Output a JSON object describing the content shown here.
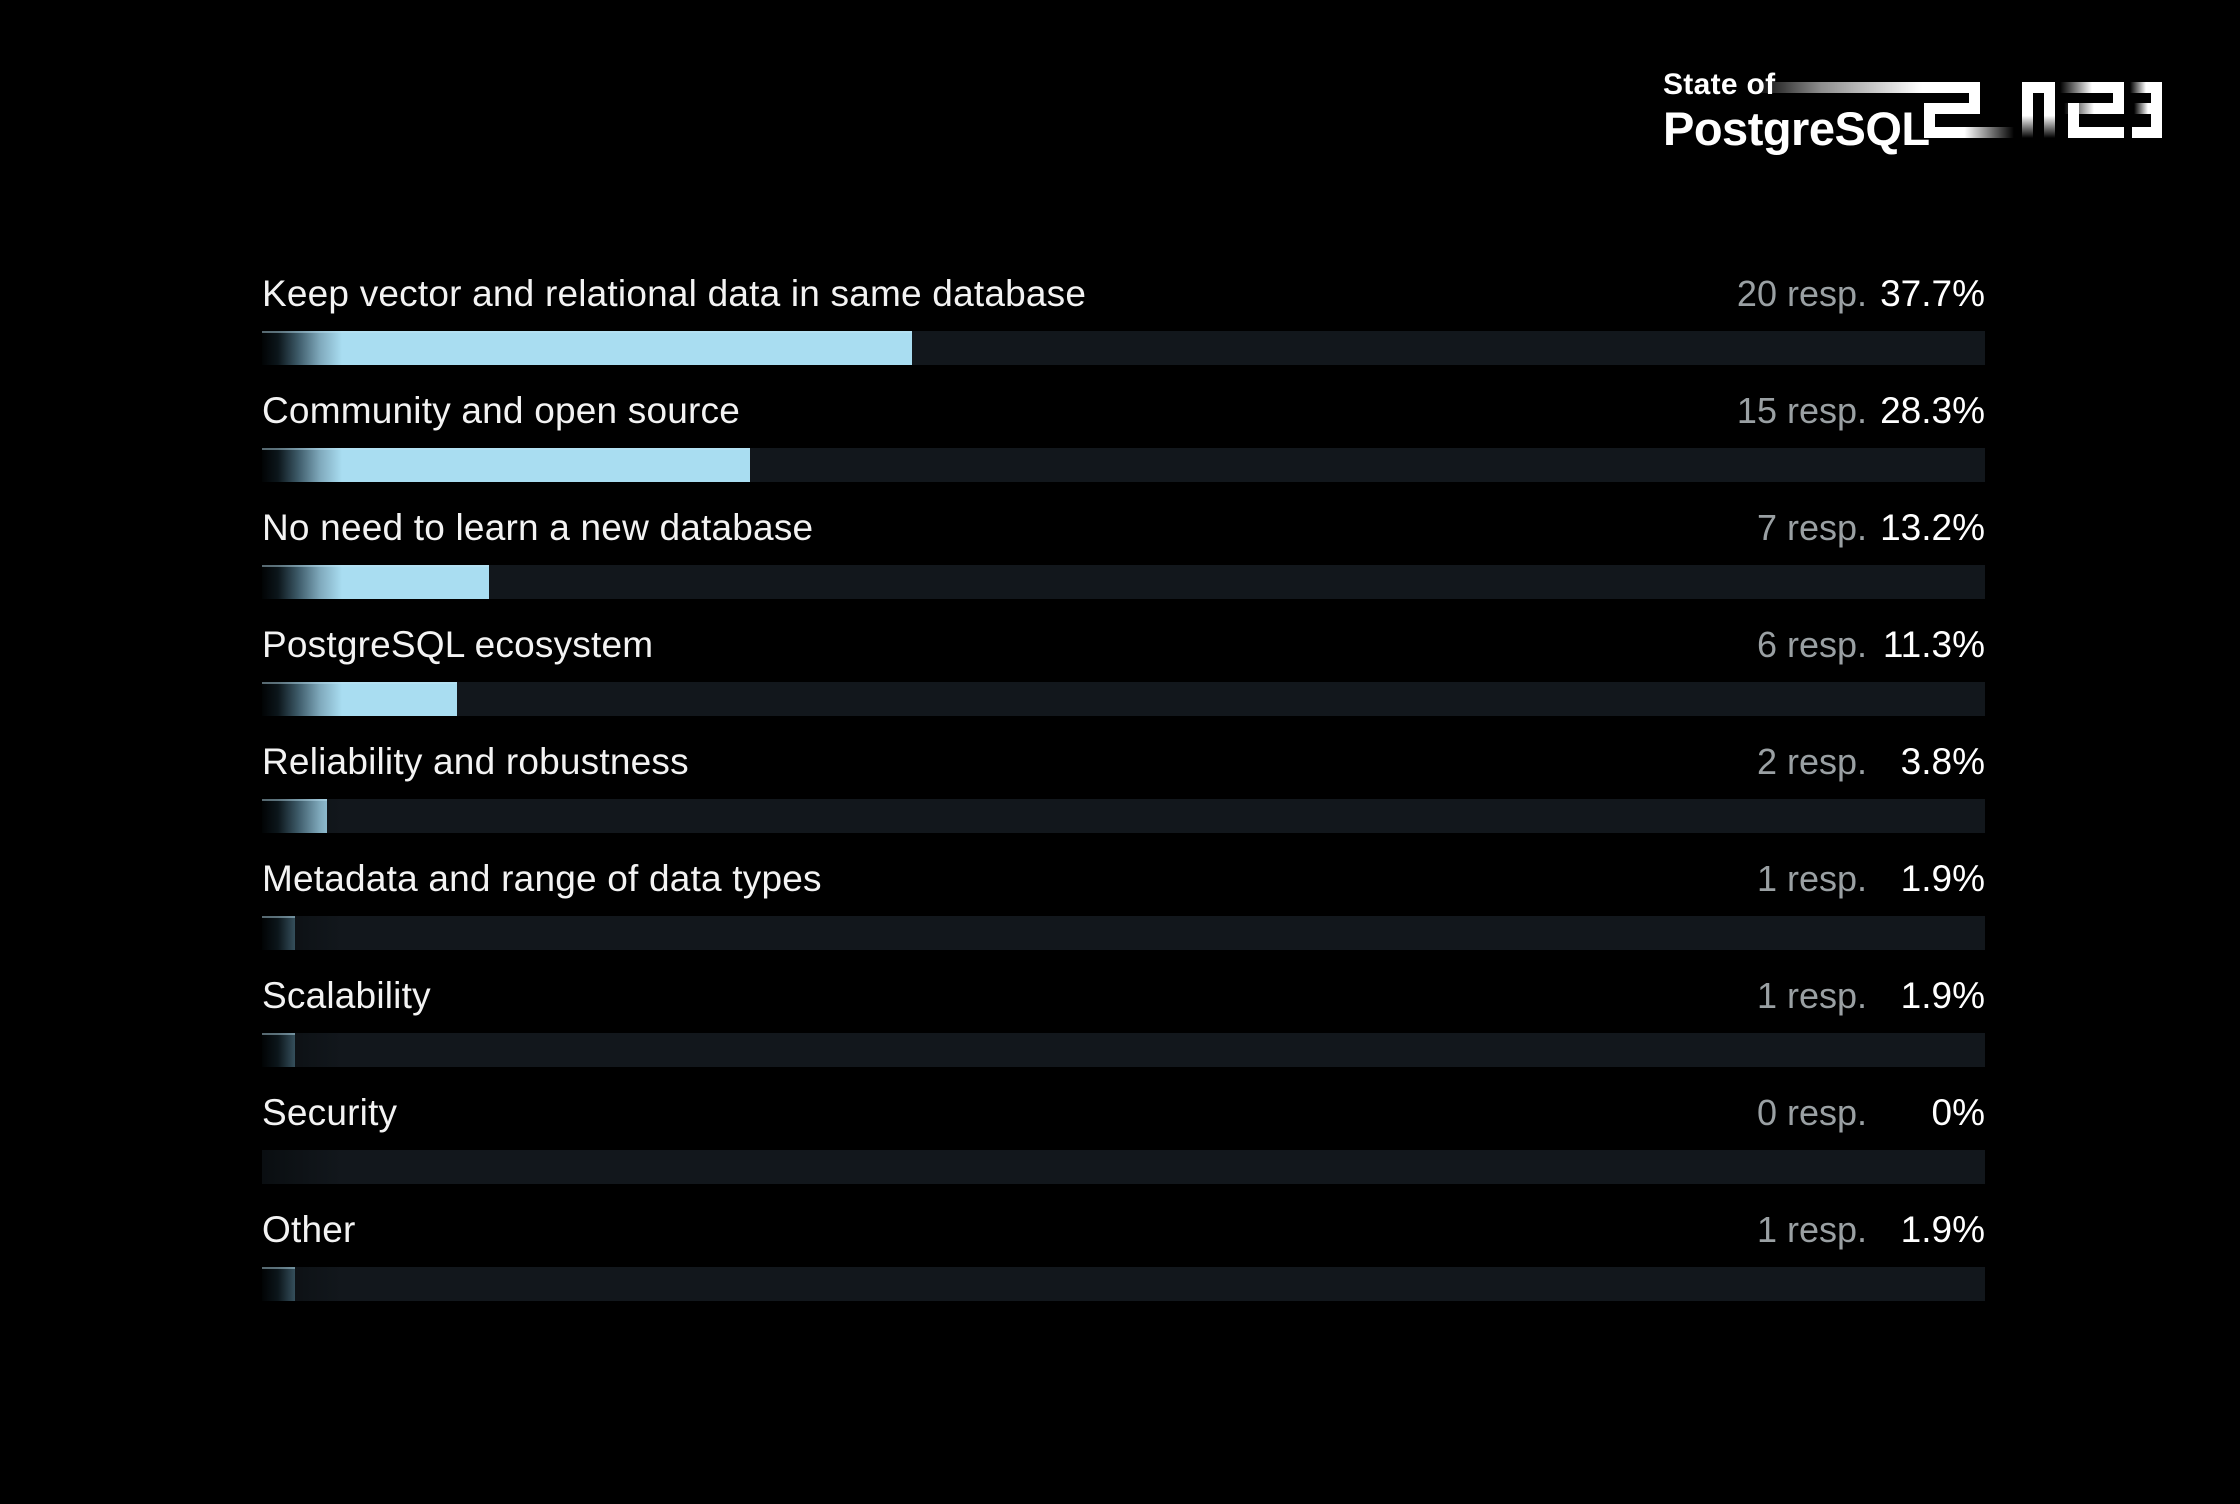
{
  "page": {
    "background": "#000000"
  },
  "logo": {
    "line1": "State of",
    "line2": "PostgreSQL",
    "year": "2023"
  },
  "colors": {
    "background": "#000000",
    "bar_fill": "#a9ddf1",
    "bar_gradient_dark": "#010304",
    "track": "#12171c",
    "label_text": "#f3f3f3",
    "resp_text": "#9aa0a3",
    "pct_text": "#ffffff",
    "logo_text": "#ffffff"
  },
  "chart_data": {
    "type": "bar",
    "orientation": "horizontal",
    "title": "",
    "xlabel": "",
    "ylabel": "",
    "xlim": [
      0,
      100
    ],
    "grid": false,
    "legend": "none",
    "value_labels_position": "right",
    "unit_label": "resp.",
    "categories": [
      "Keep vector and relational data in same database",
      "Community and open source",
      "No need to learn a new database",
      "PostgreSQL ecosystem",
      "Reliability and robustness",
      "Metadata and range of data types",
      "Scalability",
      "Security",
      "Other"
    ],
    "responses": [
      20,
      15,
      7,
      6,
      2,
      1,
      1,
      0,
      1
    ],
    "percentages": [
      37.7,
      28.3,
      13.2,
      11.3,
      3.8,
      1.9,
      1.9,
      0,
      1.9
    ],
    "rows": [
      {
        "label": "Keep vector and relational data in same database",
        "resp": "20 resp.",
        "pct": "37.7%",
        "pct_value": 37.7
      },
      {
        "label": "Community and open source",
        "resp": "15 resp.",
        "pct": "28.3%",
        "pct_value": 28.3
      },
      {
        "label": "No need to learn a new database",
        "resp": "7 resp.",
        "pct": "13.2%",
        "pct_value": 13.2
      },
      {
        "label": "PostgreSQL ecosystem",
        "resp": "6 resp.",
        "pct": "11.3%",
        "pct_value": 11.3
      },
      {
        "label": "Reliability and robustness",
        "resp": "2 resp.",
        "pct": "3.8%",
        "pct_value": 3.8
      },
      {
        "label": "Metadata and range of data types",
        "resp": "1 resp.",
        "pct": "1.9%",
        "pct_value": 1.9
      },
      {
        "label": "Scalability",
        "resp": "1 resp.",
        "pct": "1.9%",
        "pct_value": 1.9
      },
      {
        "label": "Security",
        "resp": "0 resp.",
        "pct": "0%",
        "pct_value": 0
      },
      {
        "label": "Other",
        "resp": "1 resp.",
        "pct": "1.9%",
        "pct_value": 1.9
      }
    ]
  }
}
